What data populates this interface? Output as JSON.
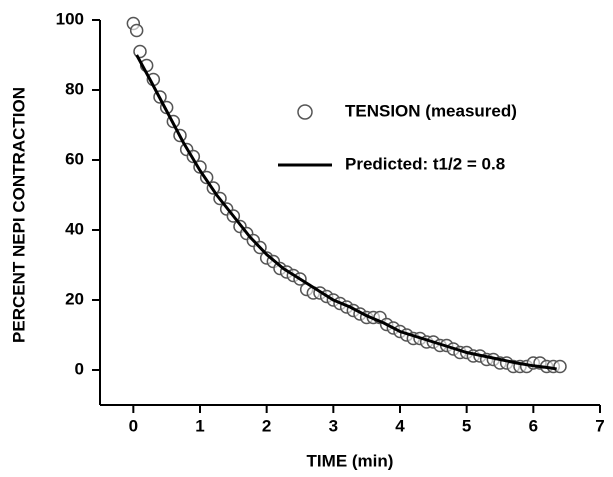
{
  "chart_data": {
    "type": "scatter",
    "xlabel": "TIME (min)",
    "ylabel": "PERCENT NEPI CONTRACTION",
    "xlim": [
      -0.5,
      7
    ],
    "ylim": [
      -10,
      100
    ],
    "xticks": [
      0,
      1,
      2,
      3,
      4,
      5,
      6,
      7
    ],
    "yticks": [
      0,
      20,
      40,
      60,
      80,
      100
    ],
    "series": [
      {
        "name": "TENSION (measured)",
        "type": "scatter",
        "color": "#555555",
        "x": [
          0.0,
          0.05,
          0.1,
          0.2,
          0.3,
          0.4,
          0.5,
          0.6,
          0.7,
          0.8,
          0.9,
          1.0,
          1.1,
          1.2,
          1.3,
          1.4,
          1.5,
          1.6,
          1.7,
          1.8,
          1.9,
          2.0,
          2.1,
          2.2,
          2.3,
          2.4,
          2.5,
          2.6,
          2.7,
          2.8,
          2.9,
          3.0,
          3.1,
          3.2,
          3.3,
          3.4,
          3.5,
          3.6,
          3.7,
          3.8,
          3.9,
          4.0,
          4.1,
          4.2,
          4.3,
          4.4,
          4.5,
          4.6,
          4.7,
          4.8,
          4.9,
          5.0,
          5.1,
          5.2,
          5.3,
          5.4,
          5.5,
          5.6,
          5.7,
          5.8,
          5.9,
          6.0,
          6.1,
          6.2,
          6.3,
          6.4
        ],
        "values": [
          99,
          97,
          91,
          87,
          83,
          78,
          75,
          71,
          67,
          63,
          61,
          58,
          55,
          52,
          49,
          46,
          44,
          41,
          39,
          37,
          35,
          32,
          31,
          29,
          28,
          27,
          26,
          23,
          22,
          22,
          21,
          20,
          19,
          18,
          17,
          16,
          15,
          15,
          15,
          13,
          12,
          11,
          10,
          9,
          9,
          8,
          8,
          7,
          7,
          6,
          5,
          5,
          4,
          4,
          3,
          3,
          2,
          2,
          1,
          1,
          1,
          2,
          2,
          1,
          1,
          1
        ]
      },
      {
        "name": "Predicted: t1/2 = 0.8",
        "type": "line",
        "color": "#000000",
        "x": [
          0.05,
          0.25,
          0.5,
          0.75,
          1,
          1.25,
          1.5,
          1.75,
          2,
          2.25,
          2.5,
          2.75,
          3,
          3.25,
          3.5,
          3.75,
          4,
          4.25,
          4.5,
          4.75,
          5,
          5.25,
          5.5,
          5.75,
          6,
          6.25,
          6.35
        ],
        "values": [
          90,
          83,
          74,
          65,
          57,
          50,
          44,
          38,
          33,
          29,
          26,
          23,
          20,
          18,
          15.5,
          13.5,
          11,
          9.5,
          8,
          6.5,
          5,
          4,
          3,
          2,
          1.2,
          0.6,
          0.3
        ]
      }
    ]
  }
}
